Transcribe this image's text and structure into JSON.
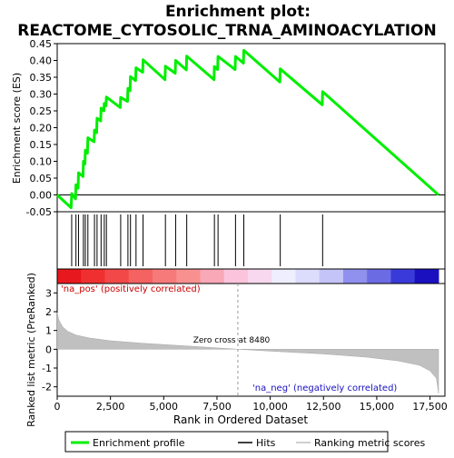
{
  "chart_data": {
    "type": "line",
    "title_line1": "Enrichment plot:",
    "title_line2": "REACTOME_CYTOSOLIC_TRNA_AMINOACYLATION",
    "xlabel": "Rank in Ordered Dataset",
    "ylabel_top": "Enrichment score (ES)",
    "ylabel_bottom": "Ranked list metric (PreRanked)",
    "xlim": [
      0,
      18200
    ],
    "ylim_top": [
      -0.05,
      0.45
    ],
    "ylim_bottom": [
      -2.5,
      3.5
    ],
    "x_ticks": [
      "0",
      "2,500",
      "5,000",
      "7,500",
      "10,000",
      "12,500",
      "15,000",
      "17,500"
    ],
    "x_tick_values": [
      0,
      2500,
      5000,
      7500,
      10000,
      12500,
      15000,
      17500
    ],
    "y_ticks_top": [
      "-0.05",
      "0.00",
      "0.05",
      "0.10",
      "0.15",
      "0.20",
      "0.25",
      "0.30",
      "0.35",
      "0.40",
      "0.45"
    ],
    "y_tick_values_top": [
      -0.05,
      0.0,
      0.05,
      0.1,
      0.15,
      0.2,
      0.25,
      0.3,
      0.35,
      0.4,
      0.45
    ],
    "y_ticks_bottom": [
      "-2",
      "-1",
      "0",
      "1",
      "2",
      "3"
    ],
    "y_tick_values_bottom": [
      -2,
      -1,
      0,
      1,
      2,
      3
    ],
    "hits": [
      680,
      880,
      1000,
      1230,
      1320,
      1440,
      1750,
      1870,
      2060,
      2210,
      2310,
      2980,
      3320,
      3440,
      3700,
      4030,
      5080,
      5560,
      6080,
      7380,
      7550,
      8370,
      8760,
      10470,
      12460
    ],
    "es_points": [
      [
        0,
        0.0
      ],
      [
        650,
        -0.038
      ],
      [
        680,
        0.004
      ],
      [
        860,
        -0.012
      ],
      [
        880,
        0.03
      ],
      [
        980,
        0.02
      ],
      [
        1000,
        0.066
      ],
      [
        1210,
        0.055
      ],
      [
        1230,
        0.1
      ],
      [
        1300,
        0.092
      ],
      [
        1320,
        0.133
      ],
      [
        1420,
        0.124
      ],
      [
        1440,
        0.17
      ],
      [
        1730,
        0.158
      ],
      [
        1750,
        0.193
      ],
      [
        1850,
        0.185
      ],
      [
        1870,
        0.228
      ],
      [
        2040,
        0.22
      ],
      [
        2060,
        0.258
      ],
      [
        2190,
        0.25
      ],
      [
        2210,
        0.272
      ],
      [
        2290,
        0.265
      ],
      [
        2310,
        0.291
      ],
      [
        2960,
        0.26
      ],
      [
        2980,
        0.29
      ],
      [
        3300,
        0.278
      ],
      [
        3320,
        0.317
      ],
      [
        3420,
        0.31
      ],
      [
        3440,
        0.352
      ],
      [
        3680,
        0.34
      ],
      [
        3700,
        0.378
      ],
      [
        4010,
        0.365
      ],
      [
        4030,
        0.402
      ],
      [
        5060,
        0.343
      ],
      [
        5080,
        0.383
      ],
      [
        5540,
        0.362
      ],
      [
        5560,
        0.4
      ],
      [
        6060,
        0.372
      ],
      [
        6080,
        0.413
      ],
      [
        7360,
        0.343
      ],
      [
        7380,
        0.382
      ],
      [
        7530,
        0.373
      ],
      [
        7550,
        0.412
      ],
      [
        8350,
        0.373
      ],
      [
        8370,
        0.412
      ],
      [
        8740,
        0.392
      ],
      [
        8760,
        0.43
      ],
      [
        10450,
        0.336
      ],
      [
        10470,
        0.375
      ],
      [
        12440,
        0.268
      ],
      [
        12460,
        0.307
      ],
      [
        17900,
        0.0
      ]
    ],
    "metric_profile": [
      [
        0,
        1.95
      ],
      [
        80,
        1.55
      ],
      [
        250,
        1.2
      ],
      [
        500,
        0.95
      ],
      [
        900,
        0.75
      ],
      [
        1500,
        0.6
      ],
      [
        2500,
        0.45
      ],
      [
        4000,
        0.32
      ],
      [
        6000,
        0.18
      ],
      [
        8480,
        0.0
      ],
      [
        10000,
        -0.1
      ],
      [
        12500,
        -0.25
      ],
      [
        14500,
        -0.42
      ],
      [
        16000,
        -0.62
      ],
      [
        17000,
        -0.85
      ],
      [
        17500,
        -1.15
      ],
      [
        17800,
        -1.55
      ],
      [
        17900,
        -2.35
      ]
    ],
    "heatmap_colors": [
      "#e8191e",
      "#f03030",
      "#f24848",
      "#f46262",
      "#f67a7a",
      "#f89090",
      "#f9a8b8",
      "#fbc4dc",
      "#f8d8ee",
      "#eeeeff",
      "#dcdcfc",
      "#c4c4f8",
      "#9090ee",
      "#6b6be4",
      "#3a3ad8",
      "#1a10c0"
    ],
    "pos_label": "'na_pos' (positively correlated)",
    "neg_label": "'na_neg' (negatively correlated)",
    "zero_cross_label": "Zero cross at 8480",
    "zero_cross": 8480,
    "line_color": "#00ee00",
    "metric_fill_color": "#c0c0c0",
    "legend": [
      {
        "label": "Enrichment profile",
        "color": "#00ee00",
        "kind": "thick-line"
      },
      {
        "label": "Hits",
        "color": "#000000",
        "kind": "line"
      },
      {
        "label": "Ranking metric scores",
        "color": "#c0c0c0",
        "kind": "line"
      }
    ]
  }
}
